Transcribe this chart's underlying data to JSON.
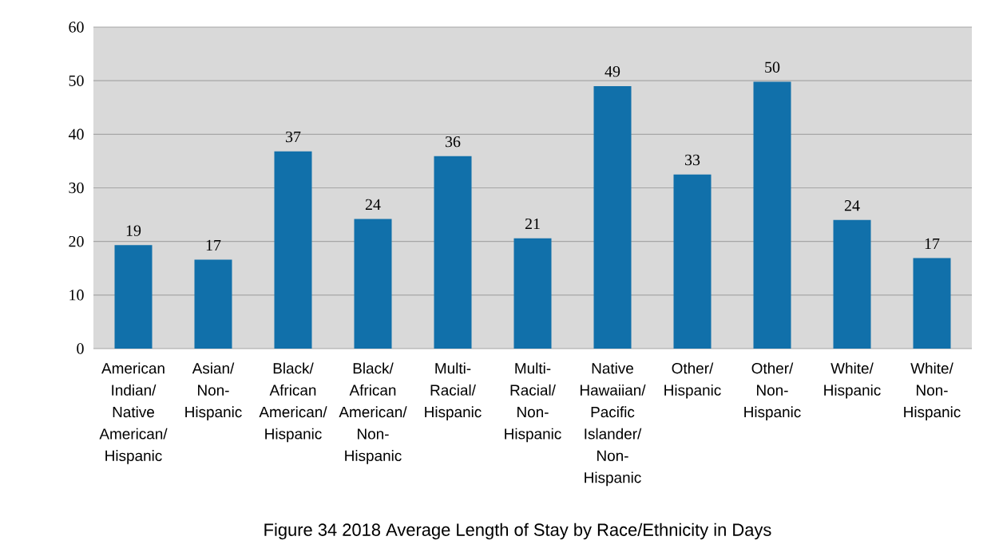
{
  "chart_data": {
    "type": "bar",
    "title": "Figure 34 2018 Average Length of Stay by Race/Ethnicity in Days",
    "categories": [
      "American Indian/ Native American/ Hispanic",
      "Asian/ Non-Hispanic",
      "Black/ African American/ Hispanic",
      "Black/ African American/ Non-Hispanic",
      "Multi-Racial/ Hispanic",
      "Multi-Racial/ Non-Hispanic",
      "Native Hawaiian/ Pacific Islander/ Non-Hispanic",
      "Other/ Hispanic",
      "Other/ Non-Hispanic",
      "White/ Hispanic",
      "White/ Non-Hispanic"
    ],
    "values": [
      19.3,
      16.6,
      36.8,
      24.2,
      35.9,
      20.6,
      49.0,
      32.5,
      49.8,
      24.0,
      16.9
    ],
    "value_labels": [
      "19",
      "17",
      "37",
      "24",
      "36",
      "21",
      "49",
      "33",
      "50",
      "24",
      "17"
    ],
    "color": "#1170aa",
    "ylim": [
      0,
      60
    ],
    "yticks": [
      0,
      10,
      20,
      30,
      40,
      50,
      60
    ],
    "grid": "y"
  }
}
